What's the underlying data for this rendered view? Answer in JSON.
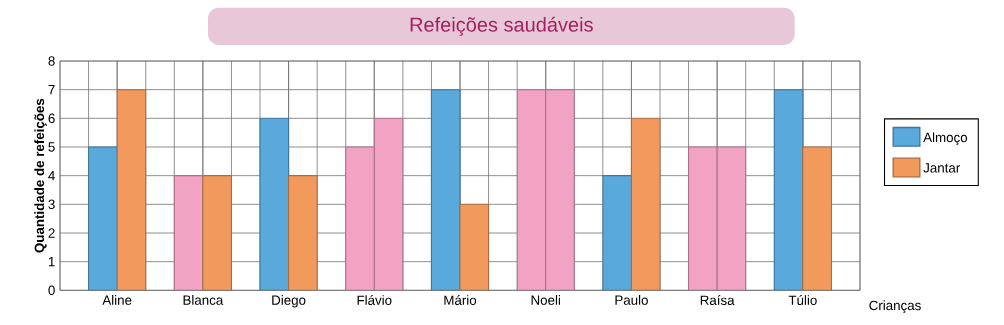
{
  "chart_data": {
    "type": "bar",
    "title": "Refeições saudáveis",
    "xlabel": "Crianças",
    "ylabel": "Quantidade de refeições",
    "categories": [
      "Aline",
      "Blanca",
      "Diego",
      "Flávio",
      "Mário",
      "Noeli",
      "Paulo",
      "Raísa",
      "Túlio"
    ],
    "series": [
      {
        "name": "Almoço",
        "color": "#5aa9dc",
        "colors": [
          "#5aa9dc",
          "#f2a3c4",
          "#5aa9dc",
          "#f2a3c4",
          "#5aa9dc",
          "#f2a3c4",
          "#5aa9dc",
          "#f2a3c4",
          "#5aa9dc"
        ],
        "values": [
          5,
          4,
          6,
          5,
          7,
          7,
          4,
          5,
          7
        ]
      },
      {
        "name": "Jantar",
        "color": "#f29a5e",
        "colors": [
          "#f29a5e",
          "#f29a5e",
          "#f29a5e",
          "#f2a3c4",
          "#f29a5e",
          "#f2a3c4",
          "#f29a5e",
          "#f2a3c4",
          "#f29a5e"
        ],
        "values": [
          7,
          4,
          4,
          6,
          3,
          7,
          6,
          5,
          5
        ]
      }
    ],
    "ylim": [
      0,
      8
    ],
    "yticks": [
      0,
      1,
      2,
      3,
      4,
      5,
      6,
      7,
      8
    ],
    "grid": true,
    "legend": "right"
  }
}
